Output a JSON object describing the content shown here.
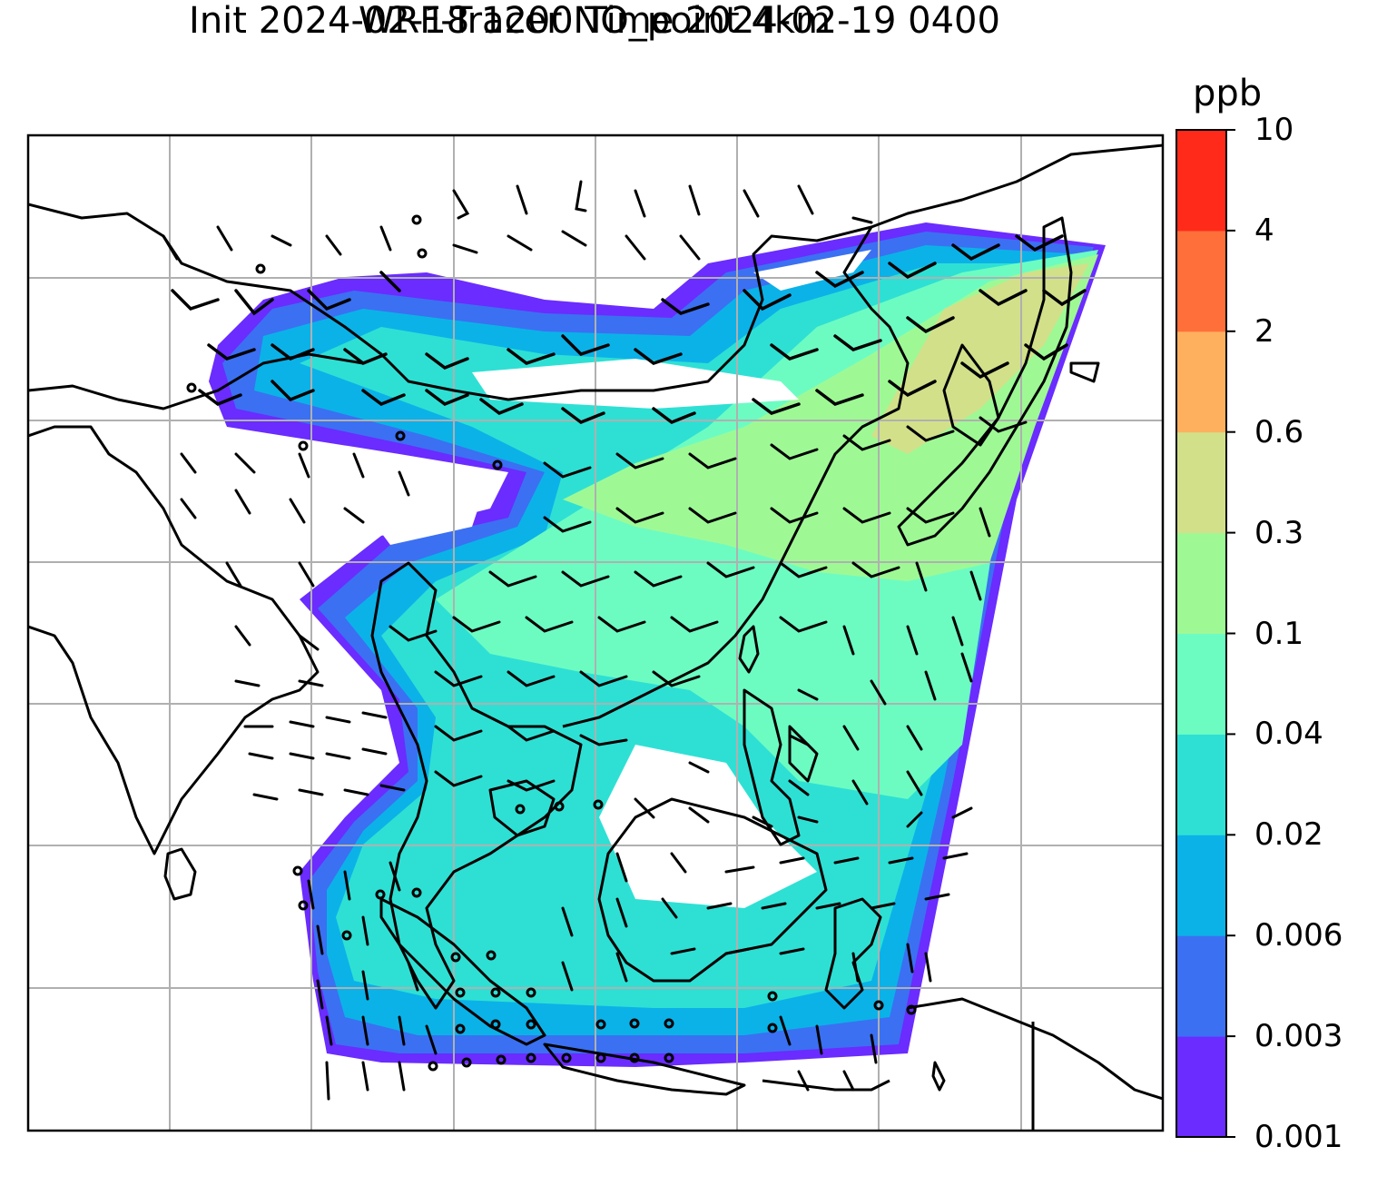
{
  "title": {
    "line1": "WRF-Tracer NO_point 4km",
    "line2": "Init 2024-02-18 1200 Time 2024-02-19 0400"
  },
  "colorbar": {
    "label": "ppb",
    "ticks": [
      "0.001",
      "0.003",
      "0.006",
      "0.02",
      "0.04",
      "0.1",
      "0.3",
      "0.6",
      "2",
      "4",
      "10"
    ],
    "colors": [
      "#6a2cff",
      "#3b70f2",
      "#0bb2e8",
      "#2ee0d4",
      "#6cfcc2",
      "#9ef995",
      "#d2e08a",
      "#ffb05f",
      "#ff6f39",
      "#ff2a1a"
    ]
  },
  "map": {
    "gridlines": true,
    "coastlines": true,
    "wind_barbs": true,
    "field": "NO tracer concentration (ppb)"
  }
}
